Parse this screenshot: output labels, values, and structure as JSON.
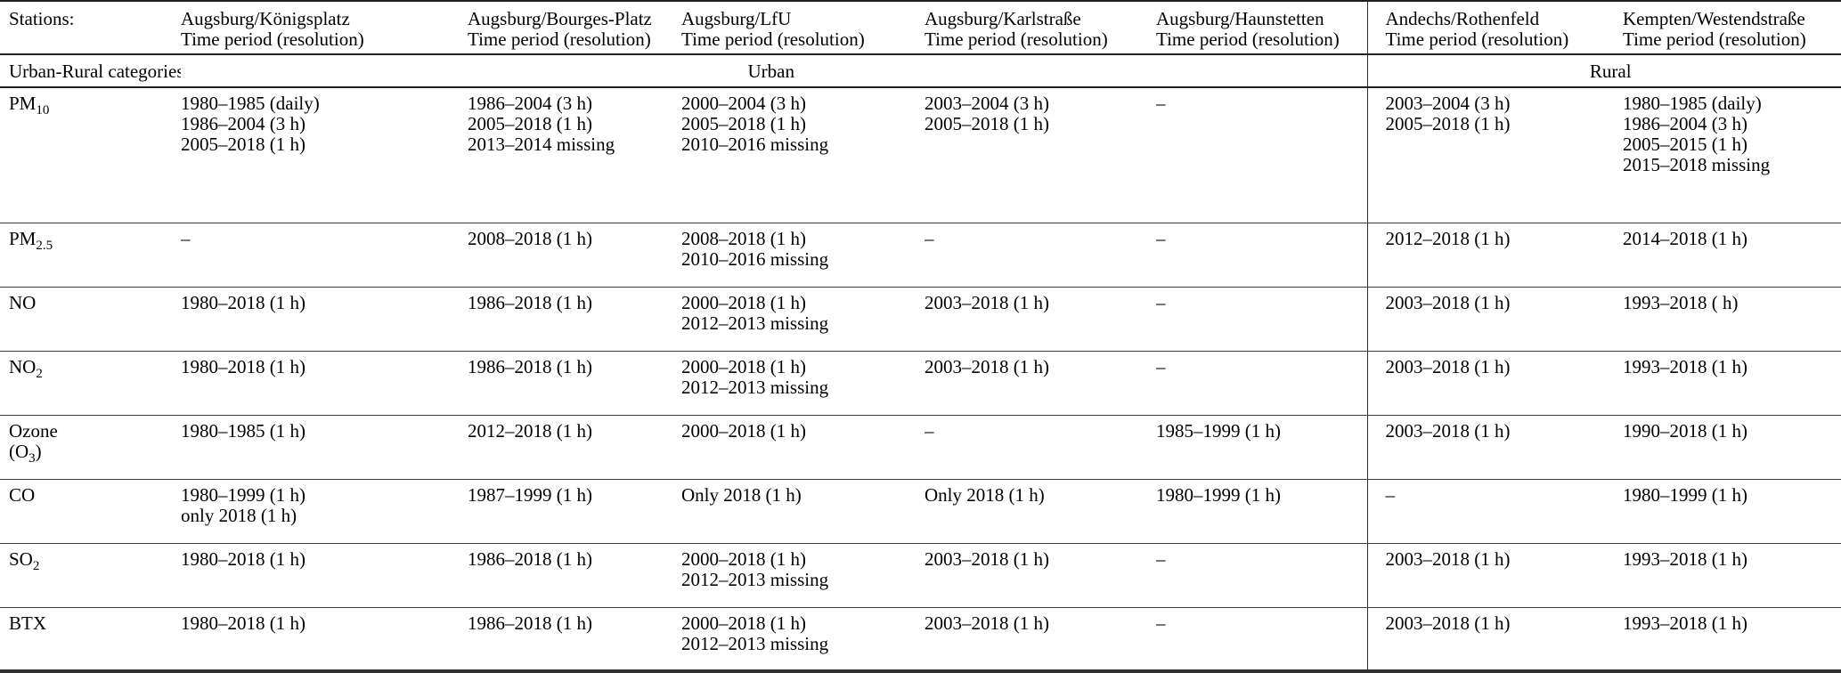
{
  "table": {
    "header": {
      "stations_label": "Stations:",
      "subtitle": "Time period (resolution)",
      "columns": [
        "Augsburg/Königsplatz",
        "Augsburg/Bourges-Platz",
        "Augsburg/LfU",
        "Augsburg/Karlstraße",
        "Augsburg/Haunstetten",
        "Andechs/Rothenfeld",
        "Kempten/Westendstraße"
      ]
    },
    "category_row": {
      "label": "Urban-Rural categories:",
      "urban_label": "Urban",
      "rural_label": "Rural"
    },
    "rows": [
      {
        "key": "pm10",
        "label": [
          {
            "t": "PM"
          },
          {
            "t": "10",
            "sub": true
          }
        ],
        "cells": [
          [
            "1980–1985 (daily)",
            "1986–2004 (3 h)",
            "2005–2018 (1 h)"
          ],
          [
            "1986–2004 (3 h)",
            "2005–2018 (1 h)",
            "2013–2014 missing"
          ],
          [
            "2000–2004 (3 h)",
            "2005–2018 (1 h)",
            "2010–2016 missing"
          ],
          [
            "2003–2004 (3 h)",
            "2005–2018 (1 h)"
          ],
          [
            "–"
          ],
          [
            "2003–2004 (3 h)",
            "2005–2018 (1 h)"
          ],
          [
            "1980–1985 (daily)",
            "1986–2004 (3 h)",
            "2005–2015 (1 h)",
            "2015–2018 missing"
          ]
        ]
      },
      {
        "key": "pm25",
        "label": [
          {
            "t": "PM"
          },
          {
            "t": "2.5",
            "sub": true
          }
        ],
        "cells": [
          [
            "–"
          ],
          [
            "2008–2018 (1 h)"
          ],
          [
            "2008–2018 (1 h)",
            "2010–2016 missing"
          ],
          [
            "–"
          ],
          [
            "–"
          ],
          [
            "2012–2018 (1 h)"
          ],
          [
            "2014–2018 (1 h)"
          ]
        ]
      },
      {
        "key": "no",
        "label": [
          {
            "t": "NO"
          }
        ],
        "cells": [
          [
            "1980–2018 (1 h)"
          ],
          [
            "1986–2018 (1 h)"
          ],
          [
            "2000–2018 (1 h)",
            "2012–2013 missing"
          ],
          [
            "2003–2018 (1 h)"
          ],
          [
            "–"
          ],
          [
            "2003–2018 (1 h)"
          ],
          [
            "1993–2018 ( h)"
          ]
        ]
      },
      {
        "key": "no2",
        "label": [
          {
            "t": "NO"
          },
          {
            "t": "2",
            "sub": true
          }
        ],
        "cells": [
          [
            "1980–2018 (1 h)"
          ],
          [
            "1986–2018 (1 h)"
          ],
          [
            "2000–2018 (1 h)",
            "2012–2013 missing"
          ],
          [
            "2003–2018 (1 h)"
          ],
          [
            "–"
          ],
          [
            "2003–2018 (1 h)"
          ],
          [
            "1993–2018 (1 h)"
          ]
        ]
      },
      {
        "key": "ozone",
        "label": [
          {
            "t": "Ozone"
          },
          {
            "br": true
          },
          {
            "t": "(O"
          },
          {
            "t": "3",
            "sub": true
          },
          {
            "t": ")"
          }
        ],
        "cells": [
          [
            "1980–1985 (1 h)"
          ],
          [
            "2012–2018 (1 h)"
          ],
          [
            "2000–2018 (1 h)"
          ],
          [
            "–"
          ],
          [
            "1985–1999 (1 h)"
          ],
          [
            "2003–2018 (1 h)"
          ],
          [
            "1990–2018 (1 h)"
          ]
        ]
      },
      {
        "key": "co",
        "label": [
          {
            "t": "CO"
          }
        ],
        "cells": [
          [
            "1980–1999 (1 h)",
            "only 2018 (1 h)"
          ],
          [
            "1987–1999 (1 h)"
          ],
          [
            "Only 2018 (1 h)"
          ],
          [
            "Only 2018 (1 h)"
          ],
          [
            "1980–1999 (1 h)"
          ],
          [
            "–"
          ],
          [
            "1980–1999 (1 h)"
          ]
        ]
      },
      {
        "key": "so2",
        "label": [
          {
            "t": "SO"
          },
          {
            "t": "2",
            "sub": true
          }
        ],
        "cells": [
          [
            "1980–2018 (1 h)"
          ],
          [
            "1986–2018 (1 h)"
          ],
          [
            "2000–2018 (1 h)",
            "2012–2013 missing"
          ],
          [
            "2003–2018 (1 h)"
          ],
          [
            "–"
          ],
          [
            "2003–2018 (1 h)"
          ],
          [
            "1993–2018 (1 h)"
          ]
        ]
      },
      {
        "key": "btx",
        "label": [
          {
            "t": "BTX"
          }
        ],
        "cells": [
          [
            "1980–2018 (1 h)"
          ],
          [
            "1986–2018 (1 h)"
          ],
          [
            "2000–2018 (1 h)",
            "2012–2013 missing"
          ],
          [
            "2003–2018 (1 h)"
          ],
          [
            "–"
          ],
          [
            "2003–2018 (1 h)"
          ],
          [
            "1993–2018 (1 h)"
          ]
        ]
      }
    ]
  }
}
